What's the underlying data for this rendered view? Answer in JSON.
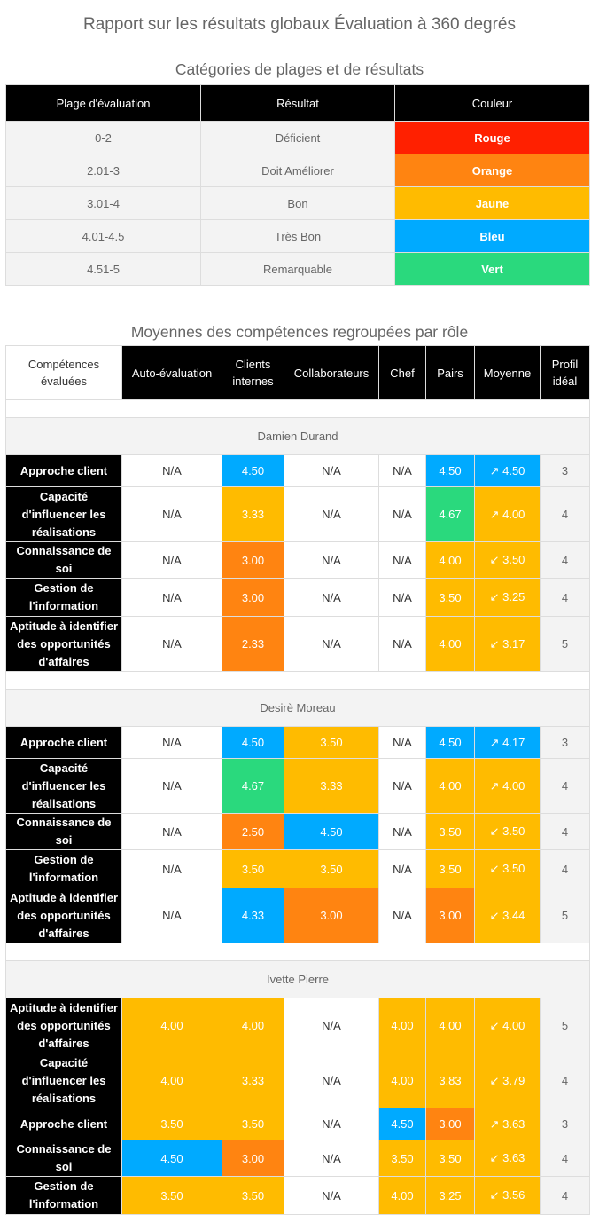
{
  "title": "Rapport sur les résultats globaux Évaluation à 360 degrés",
  "ranges": {
    "title": "Catégories de plages et de résultats",
    "headers": [
      "Plage d'évaluation",
      "Résultat",
      "Couleur"
    ],
    "rows": [
      {
        "range": "0-2",
        "result": "Déficient",
        "color_label": "Rouge",
        "color": "#ff2000"
      },
      {
        "range": "2.01-3",
        "result": "Doit Améliorer",
        "color_label": "Orange",
        "color": "#ff8411"
      },
      {
        "range": "3.01-4",
        "result": "Bon",
        "color_label": "Jaune",
        "color": "#ffbb00"
      },
      {
        "range": "4.01-4.5",
        "result": "Très Bon",
        "color_label": "Bleu",
        "color": "#00aaff"
      },
      {
        "range": "4.51-5",
        "result": "Remarquable",
        "color_label": "Vert",
        "color": "#2ad97d"
      }
    ]
  },
  "competencies": {
    "title": "Moyennes des compétences regroupées par rôle",
    "headers": [
      "Compétences évaluées",
      "Auto-évaluation",
      "Clients internes",
      "Collaborateurs",
      "Chef",
      "Pairs",
      "Moyenne",
      "Profil idéal"
    ],
    "groups": [
      {
        "name": "Damien Durand",
        "rows": [
          {
            "skill": "Approche client",
            "cells": [
              "N/A",
              "4.50",
              "N/A",
              "N/A",
              "4.50",
              "↗ 4.50"
            ],
            "colors": [
              "",
              "blue",
              "",
              "",
              "blue",
              "blue"
            ],
            "ideal": "3"
          },
          {
            "skill": "Capacité d'influencer les réalisations",
            "cells": [
              "N/A",
              "3.33",
              "N/A",
              "N/A",
              "4.67",
              "↗ 4.00"
            ],
            "colors": [
              "",
              "yellow",
              "",
              "",
              "green",
              "yellow"
            ],
            "ideal": "4"
          },
          {
            "skill": "Connaissance de soi",
            "cells": [
              "N/A",
              "3.00",
              "N/A",
              "N/A",
              "4.00",
              "↙ 3.50"
            ],
            "colors": [
              "",
              "orange",
              "",
              "",
              "yellow",
              "yellow"
            ],
            "ideal": "4"
          },
          {
            "skill": "Gestion de l'information",
            "cells": [
              "N/A",
              "3.00",
              "N/A",
              "N/A",
              "3.50",
              "↙ 3.25"
            ],
            "colors": [
              "",
              "orange",
              "",
              "",
              "yellow",
              "yellow"
            ],
            "ideal": "4"
          },
          {
            "skill": "Aptitude à identifier des opportunités d'affaires",
            "cells": [
              "N/A",
              "2.33",
              "N/A",
              "N/A",
              "4.00",
              "↙ 3.17"
            ],
            "colors": [
              "",
              "orange",
              "",
              "",
              "yellow",
              "yellow"
            ],
            "ideal": "5"
          }
        ]
      },
      {
        "name": "Desirè Moreau",
        "rows": [
          {
            "skill": "Approche client",
            "cells": [
              "N/A",
              "4.50",
              "3.50",
              "N/A",
              "4.50",
              "↗ 4.17"
            ],
            "colors": [
              "",
              "blue",
              "yellow",
              "",
              "blue",
              "blue"
            ],
            "ideal": "3"
          },
          {
            "skill": "Capacité d'influencer les réalisations",
            "cells": [
              "N/A",
              "4.67",
              "3.33",
              "N/A",
              "4.00",
              "↗ 4.00"
            ],
            "colors": [
              "",
              "green",
              "yellow",
              "",
              "yellow",
              "yellow"
            ],
            "ideal": "4"
          },
          {
            "skill": "Connaissance de soi",
            "cells": [
              "N/A",
              "2.50",
              "4.50",
              "N/A",
              "3.50",
              "↙ 3.50"
            ],
            "colors": [
              "",
              "orange",
              "blue",
              "",
              "yellow",
              "yellow"
            ],
            "ideal": "4"
          },
          {
            "skill": "Gestion de l'information",
            "cells": [
              "N/A",
              "3.50",
              "3.50",
              "N/A",
              "3.50",
              "↙ 3.50"
            ],
            "colors": [
              "",
              "yellow",
              "yellow",
              "",
              "yellow",
              "yellow"
            ],
            "ideal": "4"
          },
          {
            "skill": "Aptitude à identifier des opportunités d'affaires",
            "cells": [
              "N/A",
              "4.33",
              "3.00",
              "N/A",
              "3.00",
              "↙ 3.44"
            ],
            "colors": [
              "",
              "blue",
              "orange",
              "",
              "orange",
              "yellow"
            ],
            "ideal": "5"
          }
        ]
      },
      {
        "name": "Ivette Pierre",
        "rows": [
          {
            "skill": "Aptitude à identifier des opportunités d'affaires",
            "cells": [
              "4.00",
              "4.00",
              "N/A",
              "4.00",
              "4.00",
              "↙ 4.00"
            ],
            "colors": [
              "yellow",
              "yellow",
              "",
              "yellow",
              "yellow",
              "yellow"
            ],
            "ideal": "5"
          },
          {
            "skill": "Capacité d'influencer les réalisations",
            "cells": [
              "4.00",
              "3.33",
              "N/A",
              "4.00",
              "3.83",
              "↙ 3.79"
            ],
            "colors": [
              "yellow",
              "yellow",
              "",
              "yellow",
              "yellow",
              "yellow"
            ],
            "ideal": "4"
          },
          {
            "skill": "Approche client",
            "cells": [
              "3.50",
              "3.50",
              "N/A",
              "4.50",
              "3.00",
              "↗ 3.63"
            ],
            "colors": [
              "yellow",
              "yellow",
              "",
              "blue",
              "orange",
              "yellow"
            ],
            "ideal": "3"
          },
          {
            "skill": "Connaissance de soi",
            "cells": [
              "4.50",
              "3.00",
              "N/A",
              "3.50",
              "3.50",
              "↙ 3.63"
            ],
            "colors": [
              "blue",
              "orange",
              "",
              "yellow",
              "yellow",
              "yellow"
            ],
            "ideal": "4"
          },
          {
            "skill": "Gestion de l'information",
            "cells": [
              "3.50",
              "3.50",
              "N/A",
              "4.00",
              "3.25",
              "↙ 3.56"
            ],
            "colors": [
              "yellow",
              "yellow",
              "",
              "yellow",
              "yellow",
              "yellow"
            ],
            "ideal": "4"
          }
        ]
      }
    ]
  },
  "palette": {
    "blue": "#00aaff",
    "yellow": "#ffbb00",
    "orange": "#ff8411",
    "green": "#2ad97d",
    "red": "#ff2000"
  }
}
